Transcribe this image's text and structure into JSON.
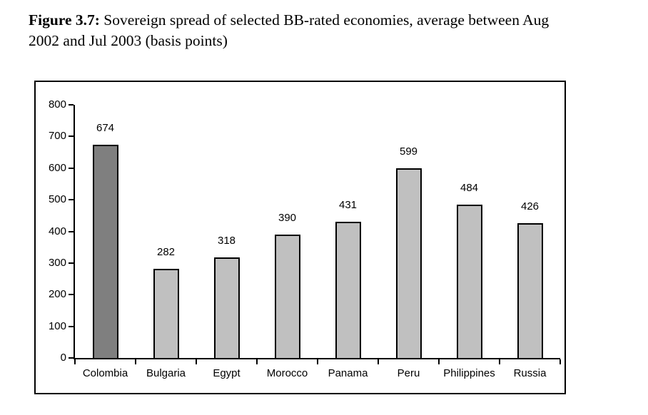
{
  "title": {
    "bold": "Figure 3.7:",
    "line1_rest": " Sovereign spread of selected BB-rated economies, average between Aug",
    "line2": "2002 and Jul 2003 (basis points)"
  },
  "chart_data": {
    "type": "bar",
    "title": "Sovereign spread of selected BB-rated economies, average between Aug 2002 and Jul 2003 (basis points)",
    "categories": [
      "Colombia",
      "Bulgaria",
      "Egypt",
      "Morocco",
      "Panama",
      "Peru",
      "Philippines",
      "Russia"
    ],
    "values": [
      674,
      282,
      318,
      390,
      431,
      599,
      484,
      426
    ],
    "xlabel": "",
    "ylabel": "",
    "ylim": [
      0,
      800
    ],
    "yticks": [
      0,
      100,
      200,
      300,
      400,
      500,
      600,
      700,
      800
    ],
    "grid": false,
    "legend": false,
    "value_labels": true,
    "highlight_index": 0,
    "colors": {
      "highlight_bar": "#7f7f7f",
      "default_bar": "#c0c0c0",
      "bar_border": "#000000",
      "axis": "#000000",
      "text": "#000000",
      "background": "#ffffff"
    }
  }
}
